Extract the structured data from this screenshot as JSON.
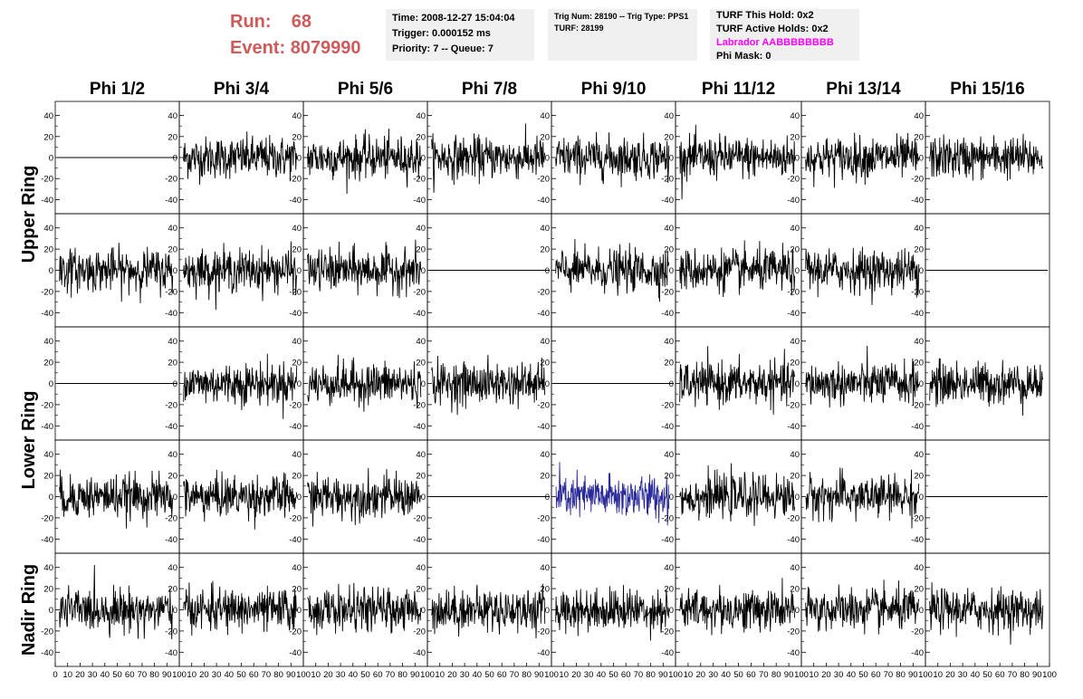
{
  "header": {
    "run_label": "Run:",
    "run_value": "68",
    "event_label": "Event:",
    "event_value": "8079990",
    "box1": [
      "Time: 2008-12-27 15:04:04",
      "Trigger: 0.000152 ms",
      "Priority: 7 -- Queue: 7"
    ],
    "box2": [
      "Trig Num: 28190 -- Trig Type: PPS1",
      "",
      "TURF: 28199"
    ],
    "box3": [
      "TURF This Hold: 0x2",
      "TURF Active Holds: 0x2",
      "Labrador AABBBBBBBB",
      "Phi Mask: 0"
    ],
    "box3_highlight_color": "#ff00ff",
    "run_color": "#d05a5a"
  },
  "chart_data": {
    "type": "line",
    "columns": [
      "Phi 1/2",
      "Phi 3/4",
      "Phi 5/6",
      "Phi 7/8",
      "Phi 9/10",
      "Phi 11/12",
      "Phi 13/14",
      "Phi 15/16"
    ],
    "ring_labels": [
      {
        "label": "Upper Ring",
        "rows": [
          0,
          1
        ]
      },
      {
        "label": "Lower Ring",
        "rows": [
          2,
          3
        ]
      },
      {
        "label": "Nadir Ring",
        "rows": [
          4
        ]
      }
    ],
    "xlim": [
      0,
      100
    ],
    "ylim": [
      -50,
      50
    ],
    "x_ticks": [
      0,
      10,
      20,
      30,
      40,
      50,
      60,
      70,
      80,
      90,
      100
    ],
    "y_ticks": [
      -40,
      -20,
      0,
      20,
      40
    ],
    "line_color": "#000000",
    "highlight_color": "#2a2a9a",
    "highlight_panel": [
      3,
      4
    ],
    "flat_panels": [
      [
        0,
        0
      ],
      [
        1,
        3
      ],
      [
        1,
        7
      ],
      [
        2,
        0
      ],
      [
        2,
        4
      ],
      [
        3,
        3
      ],
      [
        3,
        7
      ]
    ],
    "waveform_amplitude_y": 18,
    "waveform_extent_y": 45,
    "samples_per_waveform": 260
  }
}
